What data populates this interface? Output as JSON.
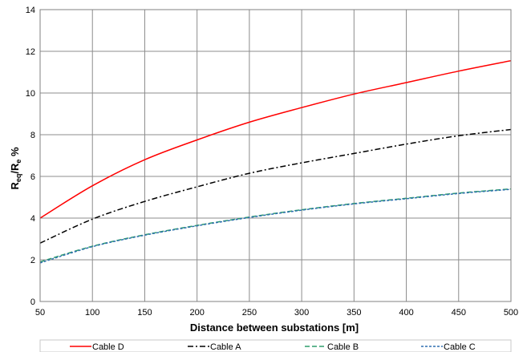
{
  "chart_data": {
    "type": "line",
    "xlabel": "Distance between substations [m]",
    "ylabel_main": "R",
    "ylabel_sub1": "eq",
    "ylabel_mid": "/R",
    "ylabel_sub2": "e",
    "ylabel_tail": " %",
    "xlim": [
      50,
      500
    ],
    "ylim": [
      0,
      14
    ],
    "xticks": [
      50,
      100,
      150,
      200,
      250,
      300,
      350,
      400,
      450,
      500
    ],
    "yticks": [
      0,
      2,
      4,
      6,
      8,
      10,
      12,
      14
    ],
    "grid": true,
    "legend_position": "bottom",
    "x": [
      50,
      100,
      150,
      200,
      250,
      300,
      350,
      400,
      450,
      500
    ],
    "series": [
      {
        "name": "Cable D",
        "color": "#ff0000",
        "dash": "solid",
        "values": [
          4.0,
          5.55,
          6.8,
          7.75,
          8.6,
          9.3,
          9.95,
          10.5,
          11.05,
          11.55
        ]
      },
      {
        "name": "Cable A",
        "color": "#000000",
        "dash": "dashdot",
        "values": [
          2.8,
          3.95,
          4.8,
          5.5,
          6.15,
          6.65,
          7.1,
          7.55,
          7.95,
          8.25
        ]
      },
      {
        "name": "Cable B",
        "color": "#2e9e6b",
        "dash": "dash",
        "values": [
          1.9,
          2.65,
          3.2,
          3.65,
          4.05,
          4.4,
          4.7,
          4.95,
          5.2,
          5.4
        ]
      },
      {
        "name": "Cable C",
        "color": "#2f6fb0",
        "dash": "dot",
        "values": [
          1.85,
          2.63,
          3.18,
          3.63,
          4.03,
          4.38,
          4.68,
          4.93,
          5.18,
          5.38
        ]
      }
    ]
  }
}
